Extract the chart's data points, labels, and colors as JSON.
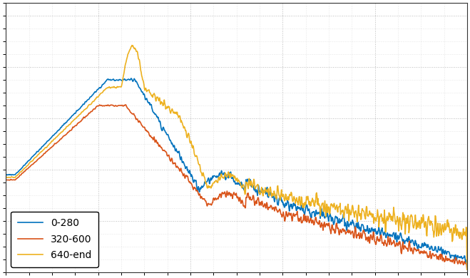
{
  "line1_label": "0-280",
  "line2_label": "320-600",
  "line3_label": "640-end",
  "line1_color": "#0072BD",
  "line2_color": "#D95319",
  "line3_color": "#EDB120",
  "background_color": "#ffffff",
  "grid_color": "#aaaaaa",
  "linewidth": 1.2,
  "legend_fontsize": 10,
  "legend_loc": "lower left"
}
